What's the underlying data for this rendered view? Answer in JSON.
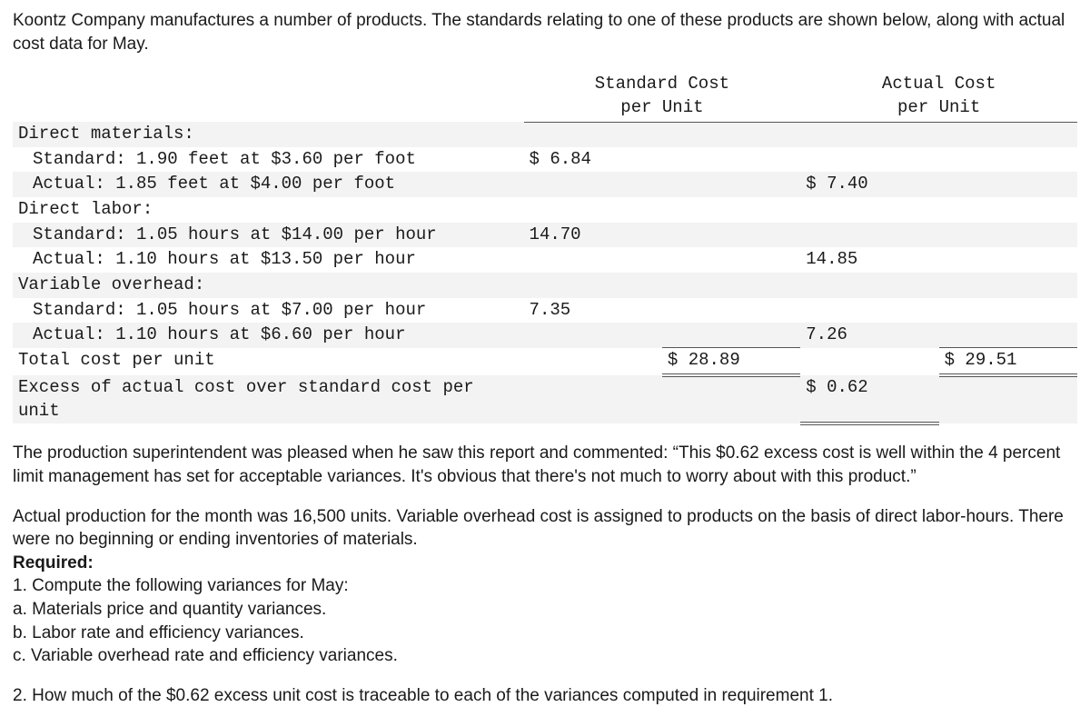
{
  "intro": "Koontz Company manufactures a number of products. The standards relating to one of these products are shown below, along with actual cost data for May.",
  "headers": {
    "std_l1": "Standard Cost",
    "std_l2": "per Unit",
    "act_l1": "Actual Cost",
    "act_l2": "per Unit"
  },
  "rows": {
    "dm_head": "Direct materials:",
    "dm_std": "Standard: 1.90 feet at $3.60 per foot",
    "dm_std_val": "$ 6.84",
    "dm_act": "Actual: 1.85 feet at $4.00 per foot",
    "dm_act_val": "$ 7.40",
    "dl_head": "Direct labor:",
    "dl_std": "Standard: 1.05 hours at $14.00 per hour",
    "dl_std_val": "14.70",
    "dl_act": "Actual: 1.10 hours at $13.50 per hour",
    "dl_act_val": "14.85",
    "vo_head": "Variable overhead:",
    "vo_std": "Standard: 1.05 hours at $7.00 per hour",
    "vo_std_val": "7.35",
    "vo_act": "Actual: 1.10 hours at $6.60 per hour",
    "vo_act_val": "7.26",
    "total_lbl": "Total cost per unit",
    "total_std": "$ 28.89",
    "total_act": "$ 29.51",
    "excess_lbl": "Excess of actual cost over standard cost per unit",
    "excess_val": "$ 0.62"
  },
  "para1": "The production superintendent was pleased when he saw this report and commented: “This $0.62 excess cost is well within the 4 percent limit management has set for acceptable variances. It's obvious that there's not much to worry about with this product.”",
  "para2": "Actual production for the month was 16,500 units. Variable overhead cost is assigned to products on the basis of direct labor-hours. There were no beginning or ending inventories of materials.",
  "req_head": "Required:",
  "req1": "1. Compute the following variances for May:",
  "req1a": "a. Materials price and quantity variances.",
  "req1b": "b. Labor rate and efficiency variances.",
  "req1c": "c. Variable overhead rate and efficiency variances.",
  "req2": "2. How much of the $0.62 excess unit cost is traceable to each of the variances computed in requirement 1."
}
